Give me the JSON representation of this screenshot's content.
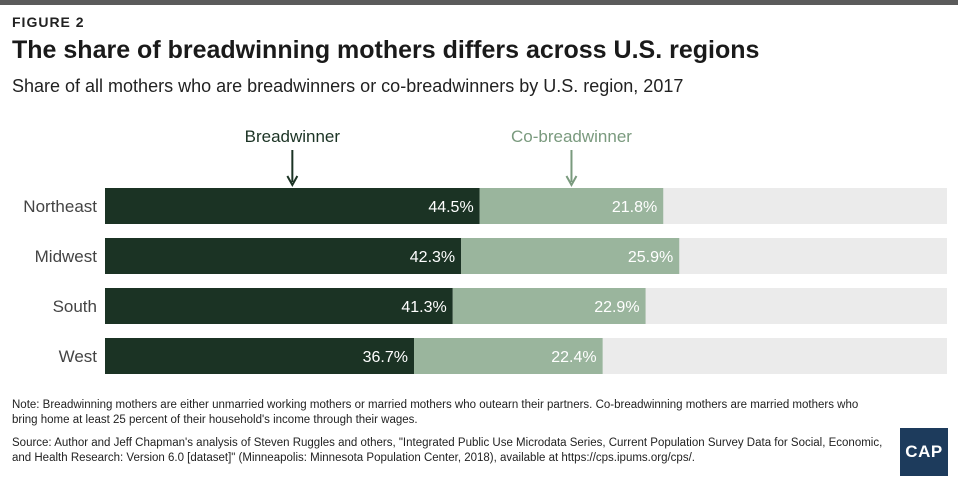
{
  "figure_label": "FIGURE 2",
  "title": "The share of breadwinning mothers differs across U.S. regions",
  "subtitle": "Share of all mothers who are breadwinners or co-breadwinners by U.S. region, 2017",
  "note": "Note: Breadwinning mothers are either unmarried working mothers or married mothers who outearn their partners. Co-breadwinning mothers are married mothers who bring home at least 25 percent of their household's income through their wages.",
  "source": "Source: Author and Jeff Chapman's analysis of Steven Ruggles and others, \"Integrated Public Use Microdata Series, Current Population Survey Data for Social, Economic, and Health Research: Version 6.0 [dataset]\" (Minneapolis: Minnesota Population Center, 2018), available at https://cps.ipums.org/cps/.",
  "logo_text": "CAP",
  "chart_data": {
    "type": "bar",
    "orientation": "horizontal",
    "stacked": true,
    "categories": [
      "Northeast",
      "Midwest",
      "South",
      "West"
    ],
    "series": [
      {
        "name": "Breadwinner",
        "values": [
          44.5,
          42.3,
          41.3,
          36.7
        ],
        "labels": [
          "44.5%",
          "42.3%",
          "41.3%",
          "36.7%"
        ],
        "color": "#1b3324"
      },
      {
        "name": "Co-breadwinner",
        "values": [
          21.8,
          25.9,
          22.9,
          22.4
        ],
        "labels": [
          "21.8%",
          "25.9%",
          "22.9%",
          "22.4%"
        ],
        "color": "#9ab59d"
      }
    ],
    "xlim": [
      0,
      100
    ],
    "background_track_color": "#ebebeb",
    "grid": false,
    "legend_placement": "top, with arrows pointing to segments"
  }
}
